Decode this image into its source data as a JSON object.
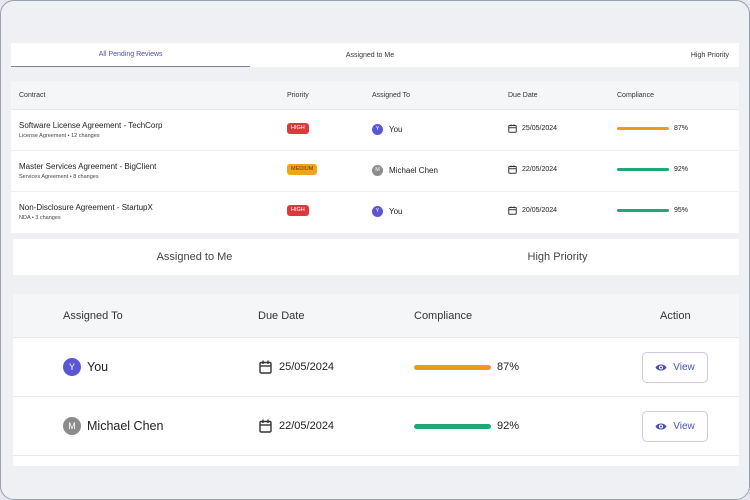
{
  "tabs_top": [
    "All Pending Reviews",
    "Assigned to Me",
    "High Priority"
  ],
  "table_top": {
    "headers": {
      "contract": "Contract",
      "priority": "Priority",
      "assigned_to": "Assigned To",
      "due_date": "Due Date",
      "compliance": "Compliance"
    },
    "rows": [
      {
        "title": "Software License Agreement - TechCorp",
        "sub": "License Agreement • 12 changes",
        "priority": "HIGH",
        "avatar": "Y",
        "assignee": "You",
        "due": "25/05/2024",
        "compliance": 87,
        "compliance_label": "87%",
        "bar_color": "#ee9b1d"
      },
      {
        "title": "Master Services Agreement - BigClient",
        "sub": "Services Agreement • 8 changes",
        "priority": "MEDIUM",
        "avatar": "M",
        "assignee": "Michael Chen",
        "due": "22/05/2024",
        "compliance": 92,
        "compliance_label": "92%",
        "bar_color": "#1ea876"
      },
      {
        "title": "Non-Disclosure Agreement - StartupX",
        "sub": "NDA • 3 changes",
        "priority": "HIGH",
        "avatar": "Y",
        "assignee": "You",
        "due": "20/05/2024",
        "compliance": 95,
        "compliance_label": "95%",
        "bar_color": "#1ea876"
      }
    ]
  },
  "tabs_big": [
    "Assigned to Me",
    "High Priority"
  ],
  "table_big": {
    "headers": {
      "assigned_to": "Assigned To",
      "due_date": "Due Date",
      "compliance": "Compliance",
      "action": "Action"
    },
    "rows": [
      {
        "avatar": "Y",
        "assignee": "You",
        "due": "25/05/2024",
        "compliance": 87,
        "compliance_label": "87%",
        "bar_color": "#ee9b1d",
        "action": "View"
      },
      {
        "avatar": "M",
        "assignee": "Michael Chen",
        "due": "22/05/2024",
        "compliance": 92,
        "compliance_label": "92%",
        "bar_color": "#1ea876",
        "action": "View"
      }
    ]
  },
  "colors": {
    "accent": "#4b51b8",
    "high": "#dc3a3a",
    "medium": "#f3a21b",
    "avatar_you": "#5b56d6",
    "avatar_other": "#8c8c8c"
  },
  "icons": {
    "calendar": "calendar-icon",
    "view": "eye-icon"
  }
}
